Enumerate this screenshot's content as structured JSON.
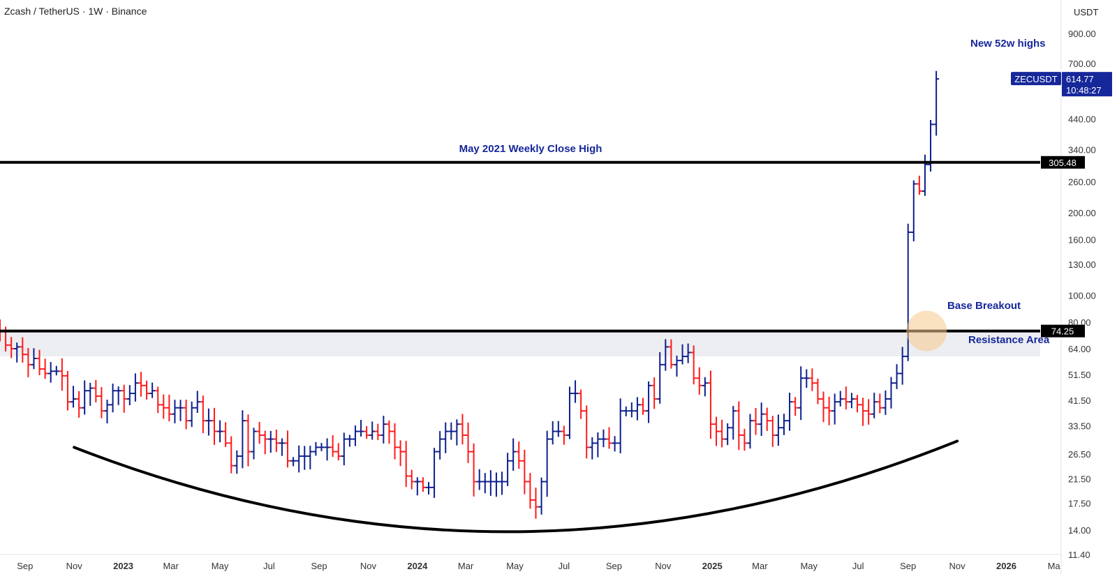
{
  "header": {
    "title": "Zcash / TetherUS · 1W · Binance"
  },
  "chart_data": {
    "type": "ohlc",
    "symbol": "ZECUSDT",
    "y_scale": "log",
    "ylim": [
      11.4,
      1000
    ],
    "y_axis_unit": "USDT",
    "y_ticks": [
      900,
      700,
      440,
      340,
      260,
      200,
      160,
      130,
      100,
      80,
      64,
      51.5,
      41.5,
      33.5,
      26.5,
      21.5,
      17.5,
      14,
      11.4
    ],
    "y_tick_labels": [
      "900.00",
      "700.00",
      "440.00",
      "340.00",
      "260.00",
      "200.00",
      "160.00",
      "130.00",
      "100.00",
      "80.00",
      "64.00",
      "51.50",
      "41.50",
      "33.50",
      "26.50",
      "21.50",
      "17.50",
      "14.00",
      "11.40"
    ],
    "x_range": [
      "2022-08-01",
      "2026-03-10"
    ],
    "x_ticks": [
      {
        "date": "2022-09-01",
        "label": "Sep"
      },
      {
        "date": "2022-11-01",
        "label": "Nov"
      },
      {
        "date": "2023-01-01",
        "label": "2023"
      },
      {
        "date": "2023-03-01",
        "label": "Mar"
      },
      {
        "date": "2023-05-01",
        "label": "May"
      },
      {
        "date": "2023-07-01",
        "label": "Jul"
      },
      {
        "date": "2023-09-01",
        "label": "Sep"
      },
      {
        "date": "2023-11-01",
        "label": "Nov"
      },
      {
        "date": "2024-01-01",
        "label": "2024"
      },
      {
        "date": "2024-03-01",
        "label": "Mar"
      },
      {
        "date": "2024-05-01",
        "label": "May"
      },
      {
        "date": "2024-07-01",
        "label": "Jul"
      },
      {
        "date": "2024-09-01",
        "label": "Sep"
      },
      {
        "date": "2024-11-01",
        "label": "Nov"
      },
      {
        "date": "2025-01-01",
        "label": "2025"
      },
      {
        "date": "2025-03-01",
        "label": "Mar"
      },
      {
        "date": "2025-05-01",
        "label": "May"
      },
      {
        "date": "2025-07-01",
        "label": "Jul"
      },
      {
        "date": "2025-09-01",
        "label": "Sep"
      },
      {
        "date": "2025-11-01",
        "label": "Nov"
      },
      {
        "date": "2026-01-01",
        "label": "2026"
      },
      {
        "date": "2026-03-01",
        "label": "Ma"
      }
    ],
    "colors": {
      "up": "#0c1f8c",
      "down": "#ff1a1a",
      "annotation": "#16279a",
      "line": "#000000"
    },
    "horizontal_lines": [
      {
        "value": 305.48,
        "label": "305.48"
      },
      {
        "value": 74.25,
        "label": "74.25"
      }
    ],
    "resistance_zone": {
      "low": 60,
      "high": 74.25
    },
    "last_price": {
      "symbol": "ZECUSDT",
      "price": "614.77",
      "countdown": "10:48:27"
    },
    "annotations": [
      {
        "text": "New 52w highs"
      },
      {
        "text": "May 2021 Weekly Close High"
      },
      {
        "text": "Base Breakout"
      },
      {
        "text": "Resistance Area"
      }
    ],
    "curve": {
      "start": {
        "date": "2022-11-01",
        "value": 28
      },
      "bottom": {
        "date": "2024-05-01",
        "value": 13.8
      },
      "end": {
        "date": "2025-11-01",
        "value": 29.5
      }
    },
    "breakout_marker": {
      "date": "2025-09-24",
      "value": 74.25
    },
    "closes": [
      74,
      66,
      64,
      65,
      61,
      56,
      59,
      54,
      52,
      53,
      53,
      51,
      41,
      42,
      39,
      45,
      46,
      43,
      38,
      40,
      45,
      45,
      42,
      44,
      48,
      47,
      44,
      45,
      40,
      39,
      37,
      39,
      39,
      35,
      39,
      41,
      35,
      35,
      32,
      32,
      29,
      24,
      26,
      35,
      27,
      32,
      31,
      30,
      30,
      29,
      29,
      25,
      25,
      26,
      26,
      27,
      28,
      28,
      28,
      27,
      26,
      30,
      30,
      32,
      32,
      31,
      32,
      31,
      34,
      32,
      28,
      27,
      22,
      21,
      21,
      20,
      20,
      27,
      30,
      32,
      32,
      34,
      31,
      27,
      21,
      21,
      21,
      21,
      21,
      21,
      25,
      27,
      25,
      21,
      18,
      17,
      21,
      30,
      32,
      32,
      31,
      44,
      44,
      38,
      28,
      29,
      30,
      30,
      29,
      29,
      38,
      38,
      38,
      40,
      38,
      47,
      42,
      56,
      65,
      56,
      58,
      60,
      62,
      50,
      47,
      48,
      34,
      32,
      30,
      33,
      38,
      31,
      29,
      35,
      34,
      37,
      35,
      31,
      33,
      35,
      41,
      39,
      50,
      50,
      48,
      42,
      39,
      38,
      41,
      42,
      41,
      42,
      40,
      38,
      37,
      41,
      39,
      42,
      48,
      52,
      60,
      170,
      255,
      240,
      300,
      420,
      614.77
    ]
  }
}
